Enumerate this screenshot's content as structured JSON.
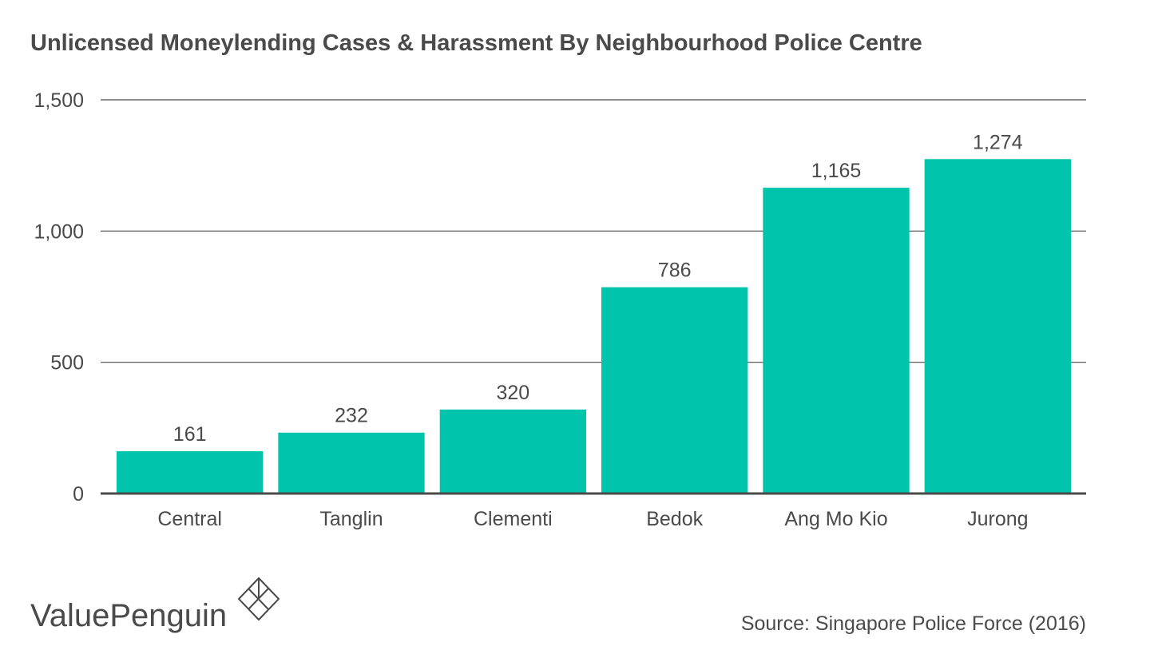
{
  "chart_data": {
    "type": "bar",
    "title": "Unlicensed Moneylending Cases & Harassment By Neighbourhood Police Centre",
    "categories": [
      "Central",
      "Tanglin",
      "Clementi",
      "Bedok",
      "Ang Mo Kio",
      "Jurong"
    ],
    "values": [
      161,
      232,
      320,
      786,
      1165,
      1274
    ],
    "value_labels": [
      "161",
      "232",
      "320",
      "786",
      "1,165",
      "1,274"
    ],
    "ylim": [
      0,
      1500
    ],
    "yticks": [
      0,
      500,
      1000,
      1500
    ],
    "ytick_labels": [
      "0",
      "500",
      "1,000",
      "1,500"
    ],
    "grid": true,
    "bar_color": "#00c4ac",
    "legend": "none"
  },
  "footer": {
    "brand": "ValuePenguin",
    "source": "Source: Singapore Police Force (2016)"
  },
  "colors": {
    "text": "#4a4a4a",
    "grid": "#4a4a4a",
    "bar": "#00c4ac"
  },
  "icons": {
    "logo": "valuepenguin-diamond-logo-icon"
  }
}
